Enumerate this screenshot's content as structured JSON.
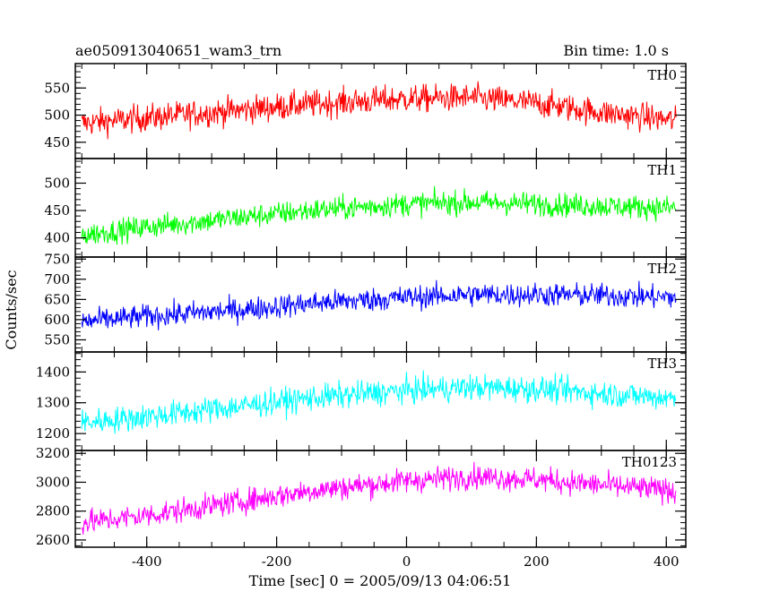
{
  "chart_data": {
    "type": "line",
    "title": "ae050913040651_wam3_trn",
    "subtitle": "Bin time: 1.0 s",
    "xlabel": "Time [sec] 0 = 2005/09/13 04:06:51",
    "ylabel": "Counts/sec",
    "xlim": [
      -510,
      430
    ],
    "xticks": [
      -400,
      -200,
      0,
      200,
      400
    ],
    "x_range": [
      -500,
      415
    ],
    "bin_time": 1.0,
    "panels": [
      {
        "name": "TH0",
        "color": "#ff0000",
        "ylim": [
          420,
          595
        ],
        "yticks": [
          450,
          500,
          550
        ],
        "trend_x": [
          -500,
          -400,
          -250,
          -150,
          0,
          100,
          200,
          300,
          415
        ],
        "trend_y": [
          485,
          495,
          510,
          520,
          530,
          532,
          522,
          505,
          490
        ],
        "noise": 33
      },
      {
        "name": "TH1",
        "color": "#00ff00",
        "ylim": [
          365,
          545
        ],
        "yticks": [
          400,
          450,
          500
        ],
        "trend_x": [
          -500,
          -400,
          -250,
          -150,
          0,
          100,
          200,
          300,
          415
        ],
        "trend_y": [
          405,
          420,
          438,
          450,
          462,
          465,
          462,
          458,
          455
        ],
        "noise": 28
      },
      {
        "name": "TH2",
        "color": "#0000ff",
        "ylim": [
          520,
          755
        ],
        "yticks": [
          550,
          600,
          650,
          700,
          750
        ],
        "trend_x": [
          -500,
          -400,
          -250,
          -150,
          0,
          100,
          200,
          300,
          415
        ],
        "trend_y": [
          595,
          608,
          625,
          640,
          655,
          662,
          662,
          660,
          655
        ],
        "noise": 38
      },
      {
        "name": "TH3",
        "color": "#00ffff",
        "ylim": [
          1145,
          1465
        ],
        "yticks": [
          1200,
          1300,
          1400
        ],
        "trend_x": [
          -500,
          -400,
          -250,
          -150,
          0,
          100,
          200,
          300,
          415
        ],
        "trend_y": [
          1235,
          1255,
          1290,
          1315,
          1340,
          1350,
          1345,
          1330,
          1315
        ],
        "noise": 55
      },
      {
        "name": "TH0123",
        "color": "#ff00ff",
        "ylim": [
          2550,
          3220
        ],
        "yticks": [
          2600,
          2800,
          3000,
          3200
        ],
        "trend_x": [
          -500,
          -400,
          -250,
          -150,
          0,
          100,
          200,
          300,
          415
        ],
        "trend_y": [
          2720,
          2770,
          2870,
          2940,
          3010,
          3040,
          3020,
          2980,
          2940
        ],
        "noise": 110
      }
    ]
  }
}
